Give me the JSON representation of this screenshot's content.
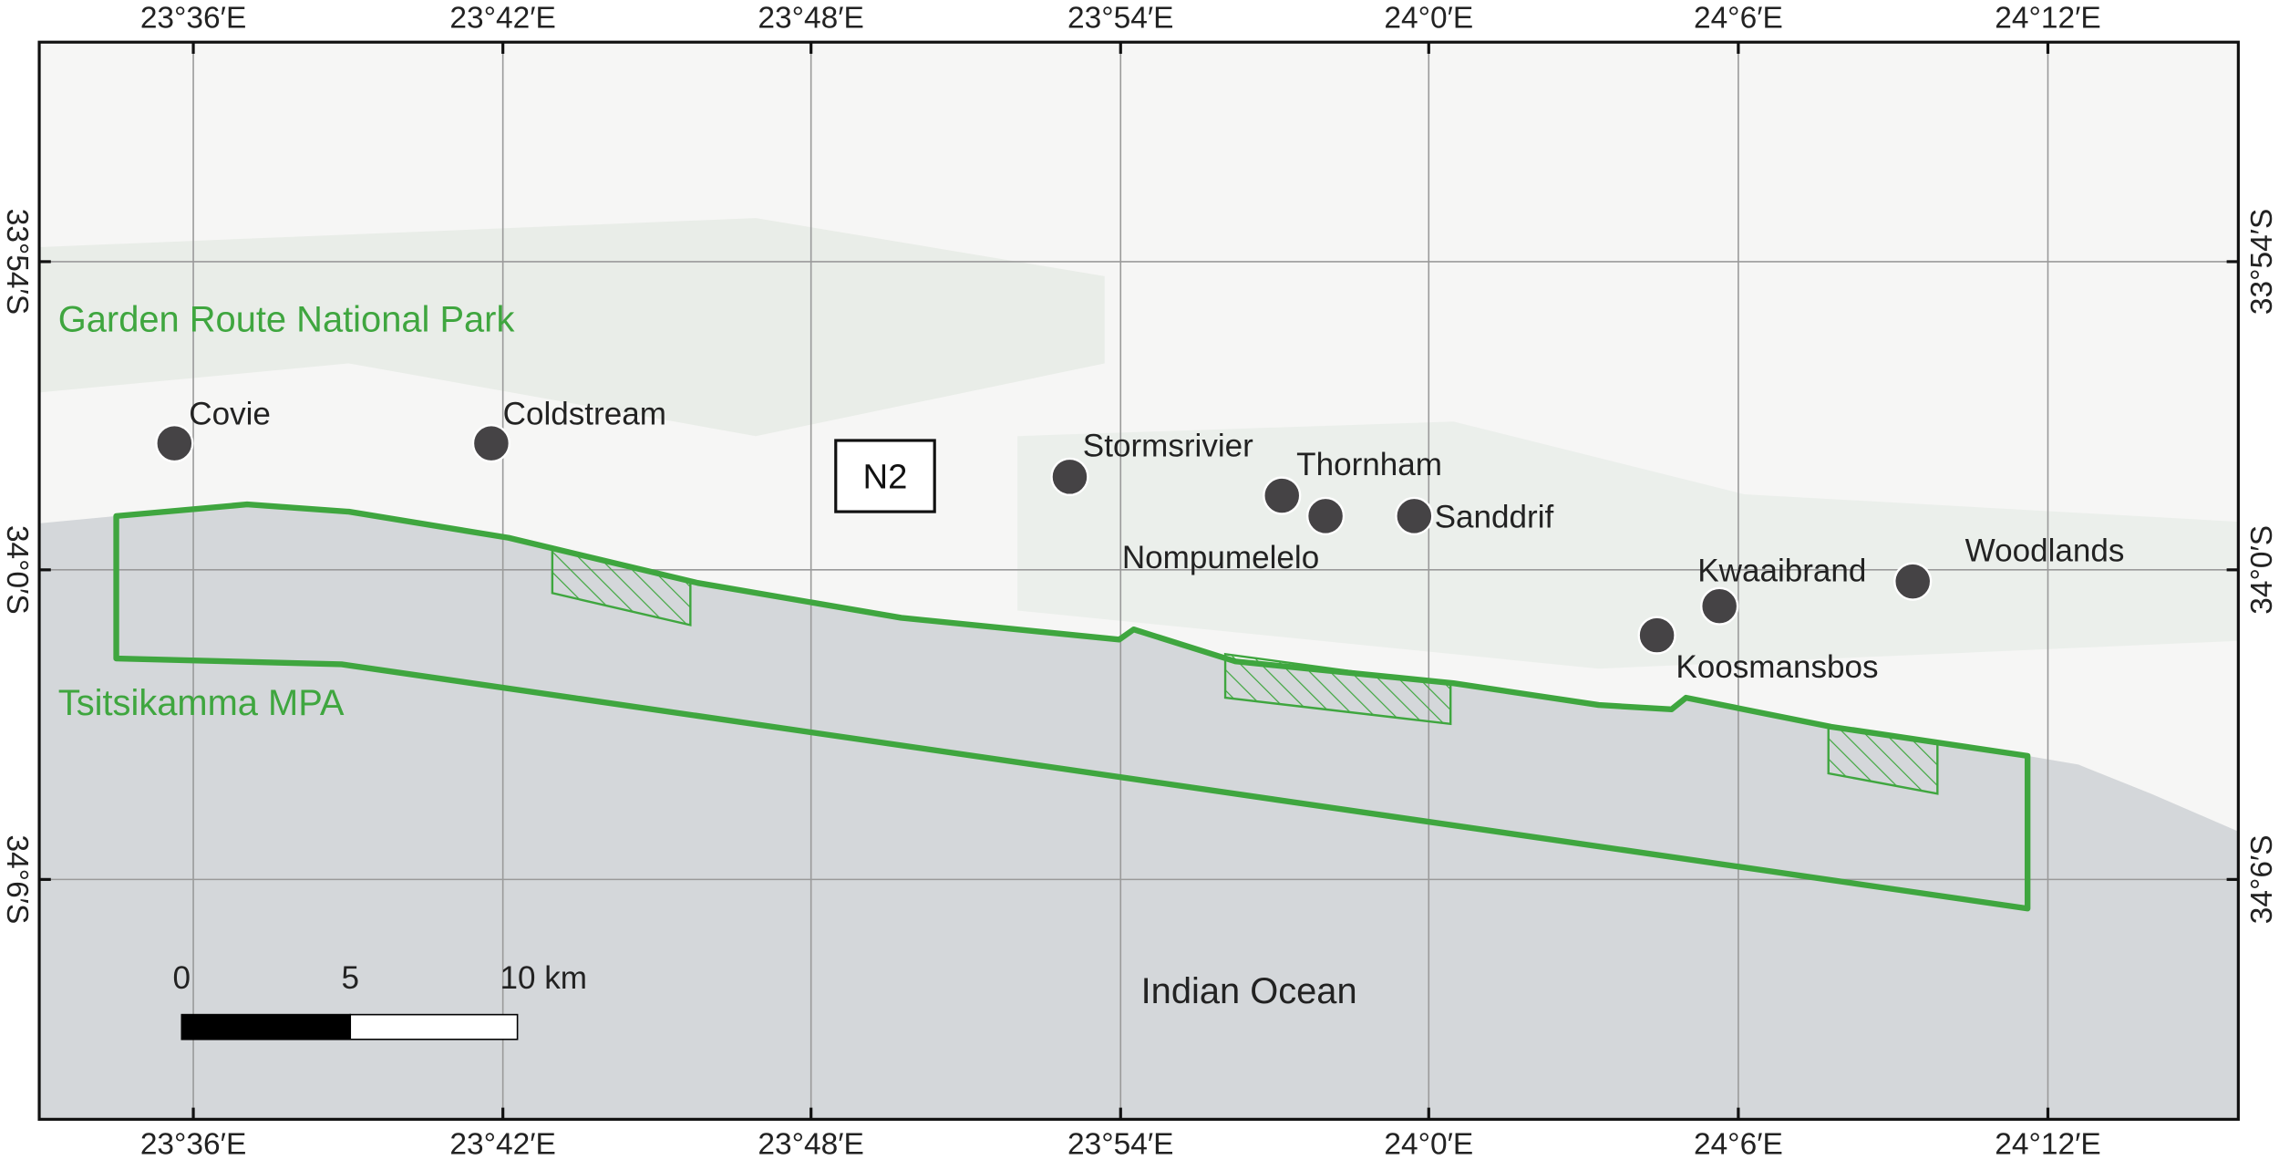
{
  "map": {
    "top_ticks": [
      "23°36′E",
      "23°42′E",
      "23°48′E",
      "23°54′E",
      "24°0′E",
      "24°6′E",
      "24°12′E"
    ],
    "bottom_ticks": [
      "23°36′E",
      "23°42′E",
      "23°48′E",
      "23°54′E",
      "24°0′E",
      "24°6′E",
      "24°12′E"
    ],
    "left_ticks": [
      "33°54′S",
      "34°0′S",
      "34°6′S"
    ],
    "right_ticks": [
      "33°54′S",
      "34°0′S",
      "34°6′S"
    ],
    "places": [
      "Covie",
      "Coldstream",
      "Stormsrivier",
      "Thornham",
      "Nompumelelo",
      "Sanddrif",
      "Kwaaibrand",
      "Koosmansbos",
      "Woodlands"
    ],
    "park_label": "Garden Route National Park",
    "mpa_label": "Tsitsikamma MPA",
    "ocean_label": "Indian Ocean",
    "road_label": "N2",
    "scale_labels": [
      "0",
      "5",
      "10 km"
    ]
  }
}
